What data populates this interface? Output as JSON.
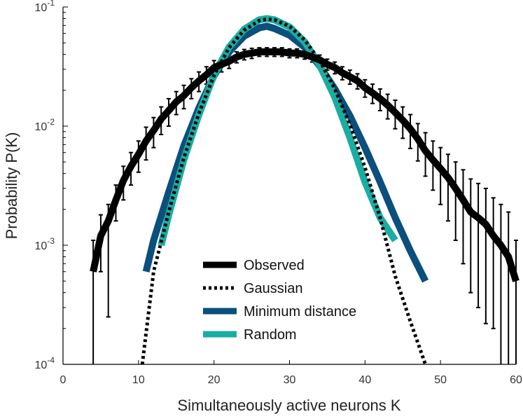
{
  "chart_data": {
    "type": "line",
    "title": "",
    "xlabel": "Simultaneously active neurons K",
    "ylabel": "Probability P(K)",
    "xlim": [
      0,
      60
    ],
    "ylim": [
      0.0001,
      0.1
    ],
    "yscale": "log",
    "xticks": [
      0,
      10,
      20,
      30,
      40,
      50,
      60
    ],
    "xtick_labels": [
      "0",
      "10",
      "20",
      "30",
      "40",
      "50",
      "60"
    ],
    "yticks": [
      0.0001,
      0.001,
      0.01,
      0.1
    ],
    "ytick_labels": [
      {
        "base": "10",
        "exp": "-4"
      },
      {
        "base": "10",
        "exp": "-3"
      },
      {
        "base": "10",
        "exp": "-2"
      },
      {
        "base": "10",
        "exp": "-1"
      }
    ],
    "legend_position": "bottom-center",
    "series": [
      {
        "name": "Observed",
        "color": "#000000",
        "style": "solid-thick",
        "x": [
          4,
          5,
          6,
          7,
          8,
          9,
          10,
          11,
          12,
          13,
          14,
          15,
          16,
          17,
          18,
          19,
          20,
          21,
          22,
          23,
          24,
          25,
          26,
          27,
          28,
          29,
          30,
          31,
          32,
          33,
          34,
          35,
          36,
          37,
          38,
          39,
          40,
          41,
          42,
          43,
          44,
          45,
          46,
          47,
          48,
          49,
          50,
          51,
          52,
          53,
          54,
          55,
          56,
          57,
          58,
          59,
          60
        ],
        "y": [
          0.0006,
          0.0012,
          0.0016,
          0.0024,
          0.0035,
          0.0046,
          0.0058,
          0.0075,
          0.0092,
          0.0115,
          0.0135,
          0.016,
          0.018,
          0.021,
          0.024,
          0.027,
          0.031,
          0.033,
          0.035,
          0.038,
          0.04,
          0.041,
          0.042,
          0.042,
          0.042,
          0.042,
          0.041,
          0.041,
          0.04,
          0.038,
          0.036,
          0.033,
          0.031,
          0.028,
          0.026,
          0.024,
          0.021,
          0.019,
          0.017,
          0.015,
          0.013,
          0.0112,
          0.0095,
          0.0078,
          0.0062,
          0.0052,
          0.0044,
          0.0037,
          0.003,
          0.0024,
          0.0019,
          0.0017,
          0.0015,
          0.0012,
          0.001,
          0.0008,
          0.0005
        ],
        "error_upper": [
          0.0011,
          0.0018,
          0.0022,
          0.0032,
          0.0046,
          0.006,
          0.0075,
          0.0098,
          0.0118,
          0.0145,
          0.017,
          0.0195,
          0.022,
          0.025,
          0.0285,
          0.0315,
          0.0355,
          0.0375,
          0.0395,
          0.042,
          0.044,
          0.045,
          0.0455,
          0.0455,
          0.0455,
          0.0455,
          0.0445,
          0.0445,
          0.0435,
          0.0415,
          0.0395,
          0.0365,
          0.0345,
          0.0315,
          0.0295,
          0.0275,
          0.0245,
          0.0225,
          0.0205,
          0.0185,
          0.0165,
          0.0145,
          0.0125,
          0.0105,
          0.0088,
          0.0075,
          0.0066,
          0.0058,
          0.005,
          0.0043,
          0.0036,
          0.0033,
          0.003,
          0.0025,
          0.0022,
          0.0019,
          0.0011
        ],
        "error_lower": [
          0.0001,
          0.0006,
          0.00025,
          0.0016,
          0.0024,
          0.0032,
          0.0041,
          0.0052,
          0.0066,
          0.0085,
          0.01,
          0.0125,
          0.014,
          0.017,
          0.0195,
          0.0225,
          0.0265,
          0.0285,
          0.0305,
          0.034,
          0.036,
          0.037,
          0.0385,
          0.0385,
          0.0385,
          0.0385,
          0.0375,
          0.0375,
          0.0365,
          0.0345,
          0.0325,
          0.0295,
          0.0275,
          0.0245,
          0.0225,
          0.0205,
          0.0175,
          0.0155,
          0.0135,
          0.0115,
          0.0095,
          0.0079,
          0.0065,
          0.0051,
          0.0038,
          0.0029,
          0.0022,
          0.0016,
          0.0011,
          0.0007,
          0.0004,
          0.0003,
          0.00022,
          0.0002,
          0.0001,
          0.0001,
          0.0001
        ]
      },
      {
        "name": "Gaussian",
        "color": "#000000",
        "style": "dotted",
        "x": [
          10.5,
          12,
          14,
          16,
          18,
          20,
          22,
          24,
          26,
          27,
          28,
          30,
          32,
          34,
          36,
          38,
          40,
          42,
          44,
          46,
          48
        ],
        "y": [
          0.0001,
          0.0006,
          0.0019,
          0.0054,
          0.0128,
          0.0267,
          0.0456,
          0.064,
          0.077,
          0.079,
          0.078,
          0.069,
          0.053,
          0.0355,
          0.0205,
          0.0103,
          0.0045,
          0.0017,
          0.00055,
          0.00023,
          0.0001
        ]
      },
      {
        "name": "Minimum distance",
        "color": "#0b4f7c",
        "style": "solid-thick",
        "x": [
          11,
          12,
          14,
          16,
          18,
          20,
          22,
          24,
          26,
          27,
          28,
          30,
          32,
          34,
          36,
          38,
          40,
          42,
          44,
          46,
          48
        ],
        "y": [
          0.0006,
          0.0011,
          0.0028,
          0.0068,
          0.0142,
          0.0265,
          0.042,
          0.057,
          0.067,
          0.069,
          0.066,
          0.058,
          0.046,
          0.032,
          0.0205,
          0.0122,
          0.0066,
          0.0034,
          0.0017,
          0.0009,
          0.0005
        ]
      },
      {
        "name": "Random",
        "color": "#1aada2",
        "style": "solid-thick",
        "x": [
          13,
          14,
          16,
          18,
          20,
          22,
          24,
          26,
          27,
          28,
          30,
          32,
          34,
          36,
          38,
          40,
          42,
          44
        ],
        "y": [
          0.001,
          0.0018,
          0.0052,
          0.0125,
          0.027,
          0.046,
          0.065,
          0.078,
          0.08,
          0.078,
          0.068,
          0.051,
          0.0325,
          0.0175,
          0.008,
          0.0034,
          0.0017,
          0.0011
        ]
      }
    ]
  }
}
